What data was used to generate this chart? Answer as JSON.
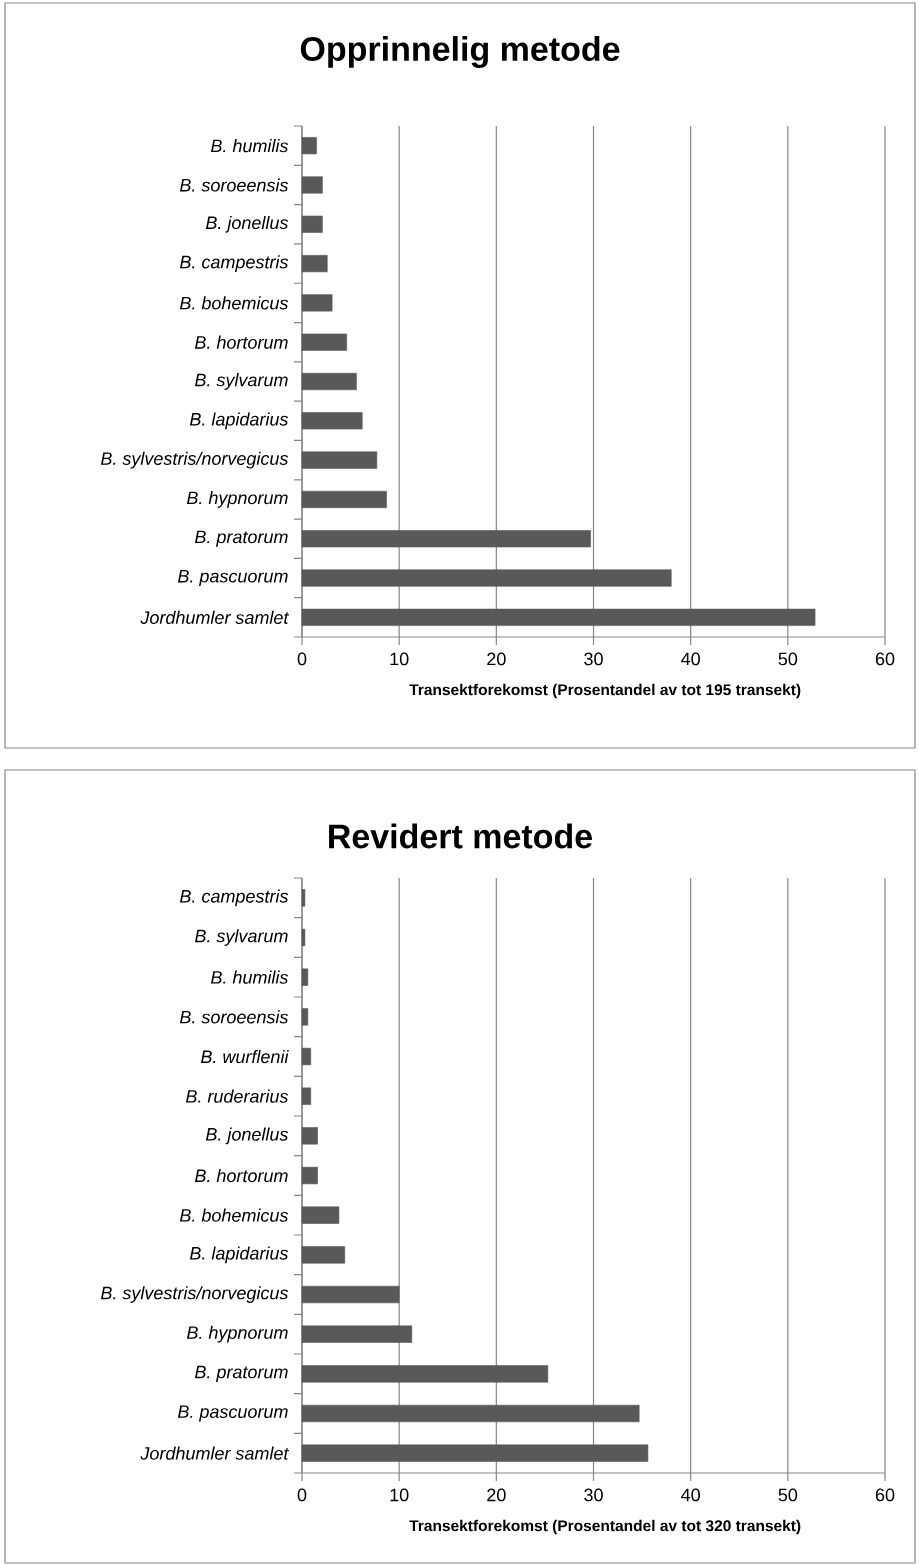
{
  "chart_data": [
    {
      "type": "bar",
      "orientation": "horizontal",
      "title": "Opprinnelig metode",
      "xlabel": "Transektforekomst (Prosentandel av tot 195 transekt)",
      "categories": [
        "B. humilis",
        "B. soroeensis",
        "B. jonellus",
        "B. campestris",
        "B. bohemicus",
        "B. hortorum",
        "B. sylvarum",
        "B. lapidarius",
        "B. sylvestris/norvegicus",
        "B. hypnorum",
        "B. pratorum",
        "B. pascuorum",
        "Jordhumler samlet"
      ],
      "values": [
        1.5,
        2.1,
        2.1,
        2.6,
        3.1,
        4.6,
        5.6,
        6.2,
        7.7,
        8.7,
        29.7,
        38.0,
        52.8
      ],
      "color": "#595959",
      "xlim": [
        0,
        60
      ],
      "xticks": [
        0,
        10,
        20,
        30,
        40,
        50,
        60
      ],
      "grid": "x"
    },
    {
      "type": "bar",
      "orientation": "horizontal",
      "title": "Revidert metode",
      "xlabel": "Transektforekomst (Prosentandel av tot 320 transekt)",
      "categories": [
        "B. campestris",
        "B. sylvarum",
        "B. humilis",
        "B. soroeensis",
        "B. wurflenii",
        "B. ruderarius",
        "B. jonellus",
        "B. hortorum",
        "B. bohemicus",
        "B. lapidarius",
        "B. sylvestris/norvegicus",
        "B. hypnorum",
        "B. pratorum",
        "B. pascuorum",
        "Jordhumler samlet"
      ],
      "values": [
        0.3,
        0.3,
        0.6,
        0.6,
        0.9,
        0.9,
        1.6,
        1.6,
        3.8,
        4.4,
        10.0,
        11.3,
        25.3,
        34.7,
        35.6
      ],
      "color": "#595959",
      "xlim": [
        0,
        60
      ],
      "xticks": [
        0,
        10,
        20,
        30,
        40,
        50,
        60
      ],
      "grid": "x"
    }
  ]
}
